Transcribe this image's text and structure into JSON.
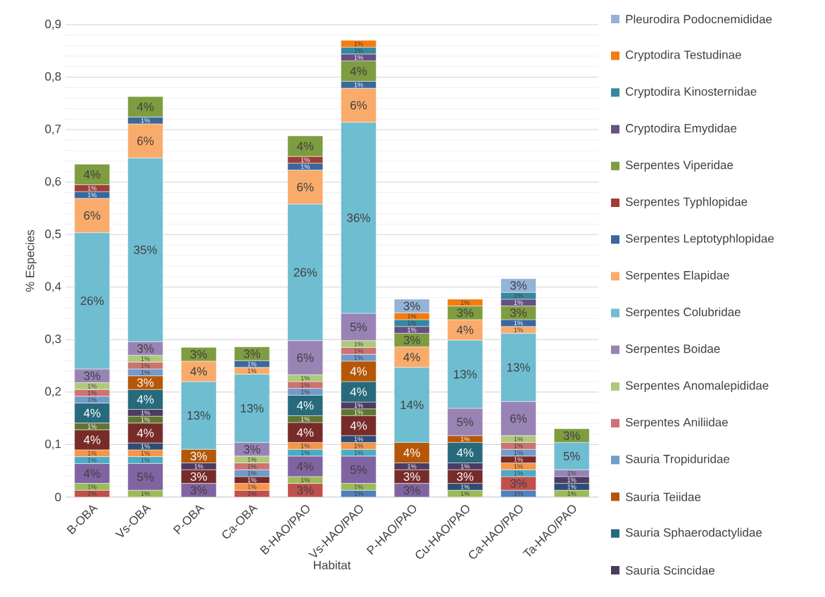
{
  "chart_data": {
    "type": "bar",
    "stacked": true,
    "xlabel": "Habitat",
    "ylabel": "% Especies",
    "categories": [
      "B-OBA",
      "Vs-OBA",
      "P-OBA",
      "Ca-OBA",
      "B-HAO/PAO",
      "Vs-HAO/PAO",
      "P-HAO/PAO",
      "Cu-HAO/PAO",
      "Ca-HAO/PAO",
      "Ta-HAO/PAO"
    ],
    "ylim": [
      0,
      0.9
    ],
    "yticks": [
      {
        "value": 0,
        "label": "0"
      },
      {
        "value": 0.1,
        "label": "0,1"
      },
      {
        "value": 0.2,
        "label": "0,2"
      },
      {
        "value": 0.3,
        "label": "0,3"
      },
      {
        "value": 0.4,
        "label": "0,4"
      },
      {
        "value": 0.5,
        "label": "0,5"
      },
      {
        "value": 0.6,
        "label": "0,6"
      },
      {
        "value": 0.7,
        "label": "0,7"
      },
      {
        "value": 0.8,
        "label": "0,8"
      },
      {
        "value": 0.9,
        "label": "0,9"
      }
    ],
    "grid": "y",
    "legend": "right",
    "series": [
      {
        "color": "#4f81bd",
        "values": [
          null,
          null,
          null,
          null,
          null,
          0.013,
          null,
          null,
          0.013,
          null
        ],
        "value_labels": [
          null,
          null,
          null,
          null,
          null,
          "1%",
          null,
          null,
          "1%",
          null
        ]
      },
      {
        "color": "#c0504d",
        "values": [
          0.013,
          null,
          null,
          0.013,
          0.026,
          null,
          null,
          null,
          0.026,
          null
        ],
        "value_labels": [
          "1%",
          null,
          null,
          "1%",
          "3%",
          null,
          null,
          null,
          "3%",
          null
        ]
      },
      {
        "color": "#9bbb59",
        "values": [
          0.013,
          0.013,
          null,
          null,
          0.013,
          0.013,
          null,
          0.013,
          null,
          0.013
        ],
        "value_labels": [
          "1%",
          "1%",
          null,
          null,
          "1%",
          "1%",
          null,
          "1%",
          null,
          "1%"
        ]
      },
      {
        "color": "#8064a2",
        "values": [
          0.038,
          0.051,
          0.026,
          null,
          0.039,
          0.052,
          0.026,
          null,
          null,
          null
        ],
        "value_labels": [
          "4%",
          "5%",
          "3%",
          null,
          "4%",
          "5%",
          "3%",
          null,
          null,
          null
        ]
      },
      {
        "color": "#4bacc6",
        "values": [
          0.013,
          0.013,
          null,
          null,
          0.013,
          0.013,
          null,
          null,
          0.013,
          null
        ],
        "value_labels": [
          "1%",
          "1%",
          null,
          null,
          "1%",
          "1%",
          null,
          null,
          "1%",
          null
        ]
      },
      {
        "color": "#f79646",
        "values": [
          0.013,
          0.013,
          null,
          0.013,
          0.013,
          0.013,
          null,
          null,
          0.013,
          null
        ],
        "value_labels": [
          "1%",
          "1%",
          null,
          "1%",
          "1%",
          "1%",
          null,
          null,
          "1%",
          null
        ]
      },
      {
        "color": "#2c4d75",
        "values": [
          null,
          0.013,
          null,
          null,
          null,
          0.013,
          null,
          0.013,
          null,
          0.013
        ],
        "value_labels": [
          null,
          "1%",
          null,
          null,
          null,
          "1%",
          null,
          "1%",
          null,
          "1%"
        ]
      },
      {
        "color": "#772c2a",
        "values": [
          0.038,
          0.038,
          0.026,
          0.013,
          0.038,
          0.038,
          0.026,
          0.026,
          0.013,
          null
        ],
        "value_labels": [
          "4%",
          "4%",
          "3%",
          "1%",
          "4%",
          "4%",
          "3%",
          "3%",
          "1%",
          null
        ]
      },
      {
        "color": "#5f7530",
        "values": [
          0.013,
          0.013,
          null,
          null,
          0.013,
          0.013,
          null,
          null,
          null,
          null
        ],
        "value_labels": [
          "1%",
          "1%",
          null,
          null,
          "1%",
          "1%",
          null,
          null,
          null,
          null
        ]
      },
      {
        "name": "Sauria Scincidae",
        "color": "#4d3b62",
        "values": [
          null,
          0.013,
          0.013,
          null,
          null,
          0.013,
          0.013,
          0.013,
          null,
          0.013
        ],
        "value_labels": [
          null,
          "1%",
          "1%",
          null,
          null,
          "1%",
          "1%",
          "1%",
          null,
          "1%"
        ]
      },
      {
        "name": "Sauria Sphaerodactylidae",
        "color": "#276a7c",
        "values": [
          0.038,
          0.038,
          null,
          null,
          0.039,
          0.039,
          null,
          0.039,
          null,
          null
        ],
        "value_labels": [
          "4%",
          "4%",
          null,
          null,
          "4%",
          "4%",
          null,
          "4%",
          null,
          null
        ]
      },
      {
        "name": "Sauria Teiidae",
        "color": "#b65708",
        "values": [
          null,
          0.026,
          0.026,
          null,
          null,
          0.039,
          0.039,
          0.013,
          null,
          null
        ],
        "value_labels": [
          null,
          "3%",
          "3%",
          null,
          null,
          "4%",
          "4%",
          "1%",
          null,
          null
        ]
      },
      {
        "name": "Sauria Tropiduridae",
        "color": "#729aca",
        "values": [
          0.013,
          0.013,
          null,
          0.013,
          0.013,
          0.013,
          null,
          null,
          0.013,
          null
        ],
        "value_labels": [
          "1%",
          "1%",
          null,
          "1%",
          "1%",
          "1%",
          null,
          null,
          "1%",
          null
        ]
      },
      {
        "name": "Serpentes Aniliidae",
        "color": "#cd7371",
        "values": [
          0.013,
          0.013,
          null,
          0.013,
          0.013,
          0.013,
          null,
          null,
          0.013,
          null
        ],
        "value_labels": [
          "1%",
          "1%",
          null,
          "1%",
          "1%",
          "1%",
          null,
          null,
          "1%",
          null
        ]
      },
      {
        "name": "Serpentes Anomalepididae",
        "color": "#afc97a",
        "values": [
          0.013,
          0.013,
          null,
          0.013,
          0.013,
          0.013,
          null,
          null,
          0.013,
          null
        ],
        "value_labels": [
          "1%",
          "1%",
          null,
          "1%",
          "1%",
          "1%",
          null,
          null,
          "1%",
          null
        ]
      },
      {
        "name": "Serpentes Boidae",
        "color": "#9983b5",
        "values": [
          0.026,
          0.026,
          null,
          0.026,
          0.065,
          0.052,
          null,
          0.052,
          0.065,
          0.013
        ],
        "value_labels": [
          "3%",
          "3%",
          null,
          "3%",
          "6%",
          "5%",
          null,
          "5%",
          "6%",
          "1%"
        ]
      },
      {
        "name": "Serpentes Colubridae",
        "color": "#6fbdd1",
        "values": [
          0.26,
          0.35,
          0.129,
          0.13,
          0.26,
          0.364,
          0.143,
          0.13,
          0.13,
          0.052
        ],
        "value_labels": [
          "26%",
          "35%",
          "13%",
          "13%",
          "26%",
          "36%",
          "14%",
          "13%",
          "13%",
          "5%"
        ]
      },
      {
        "name": "Serpentes Elapidae",
        "color": "#f9ab6b",
        "values": [
          0.065,
          0.065,
          0.039,
          0.013,
          0.065,
          0.065,
          0.039,
          0.039,
          0.013,
          null
        ],
        "value_labels": [
          "6%",
          "6%",
          "4%",
          "1%",
          "6%",
          "6%",
          "4%",
          "4%",
          "1%",
          null
        ]
      },
      {
        "name": "Serpentes Leptotyphlopidae",
        "color": "#3a679c",
        "values": [
          0.013,
          0.013,
          null,
          0.013,
          0.013,
          0.013,
          null,
          null,
          0.013,
          null
        ],
        "value_labels": [
          "1%",
          "1%",
          null,
          "1%",
          "1%",
          "1%",
          null,
          null,
          "1%",
          null
        ]
      },
      {
        "name": "Serpentes Typhlopidae",
        "color": "#9f3b38",
        "values": [
          0.013,
          null,
          null,
          null,
          0.013,
          null,
          null,
          null,
          null,
          null
        ],
        "value_labels": [
          "1%",
          null,
          null,
          null,
          "1%",
          null,
          null,
          null,
          null,
          null
        ]
      },
      {
        "name": "Serpentes Viperidae",
        "color": "#7e9c40",
        "values": [
          0.039,
          0.039,
          0.026,
          0.026,
          0.039,
          0.039,
          0.026,
          0.026,
          0.026,
          0.026
        ],
        "value_labels": [
          "4%",
          "4%",
          "3%",
          "3%",
          "4%",
          "4%",
          "3%",
          "3%",
          "3%",
          "3%"
        ]
      },
      {
        "name": "Cryptodira Emydidae",
        "color": "#664f83",
        "values": [
          null,
          null,
          null,
          null,
          null,
          0.013,
          0.013,
          null,
          0.013,
          null
        ],
        "value_labels": [
          null,
          null,
          null,
          null,
          null,
          "1%",
          "1%",
          null,
          "1%",
          null
        ]
      },
      {
        "name": "Cryptodira Kinosternidae",
        "color": "#34899e",
        "values": [
          null,
          null,
          null,
          null,
          null,
          0.013,
          0.013,
          null,
          0.013,
          null
        ],
        "value_labels": [
          null,
          null,
          null,
          null,
          null,
          "1%",
          "1%",
          null,
          "1%",
          null
        ]
      },
      {
        "name": "Cryptodira Testudinae",
        "color": "#f47c0f",
        "values": [
          null,
          null,
          null,
          null,
          null,
          0.013,
          0.013,
          0.013,
          null,
          null
        ],
        "value_labels": [
          null,
          null,
          null,
          null,
          null,
          "1%",
          "1%",
          "1%",
          null,
          null
        ]
      },
      {
        "name": "Pleurodira Podocnemididae",
        "color": "#95b3d7",
        "values": [
          null,
          null,
          null,
          null,
          null,
          null,
          0.026,
          null,
          0.026,
          null
        ],
        "value_labels": [
          null,
          null,
          null,
          null,
          null,
          null,
          "3%",
          null,
          "3%",
          null
        ]
      }
    ]
  }
}
